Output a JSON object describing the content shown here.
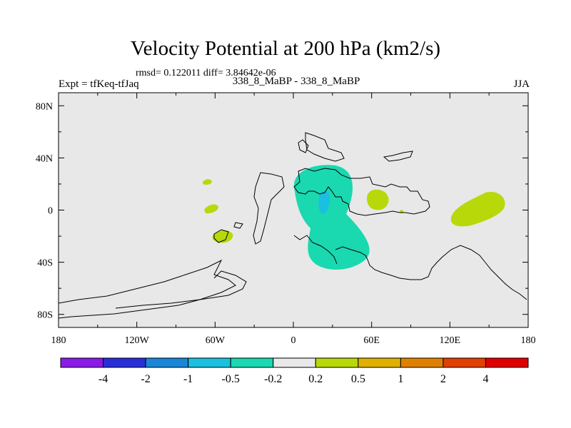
{
  "chart_data": {
    "type": "heatmap",
    "title": "Velocity Potential at 200 hPa (km2/s)",
    "stats_text": "rmsd= 0.122011 diff= 3.84642e-06",
    "left_label": "Expt = tfKeq-tfJaq",
    "center_label": "338_8_MaBP - 338_8_MaBP",
    "right_label": "JJA",
    "x_ticks": [
      {
        "value": -180,
        "label": "180"
      },
      {
        "value": -120,
        "label": "120W"
      },
      {
        "value": -60,
        "label": "60W"
      },
      {
        "value": 0,
        "label": "0"
      },
      {
        "value": 60,
        "label": "60E"
      },
      {
        "value": 120,
        "label": "120E"
      },
      {
        "value": 180,
        "label": "180"
      }
    ],
    "y_ticks": [
      {
        "value": 80,
        "label": "80N"
      },
      {
        "value": 40,
        "label": "40N"
      },
      {
        "value": 0,
        "label": "0"
      },
      {
        "value": -40,
        "label": "40S"
      },
      {
        "value": -80,
        "label": "80S"
      }
    ],
    "xlim": [
      -180,
      180
    ],
    "ylim": [
      -90,
      90
    ],
    "background_color": "#e8e8e8",
    "colorbar": {
      "colors": [
        "#8b1ae6",
        "#2a2ed8",
        "#1a86d8",
        "#1ac0e0",
        "#1ad8b0",
        "#e8e8e8",
        "#b8d80a",
        "#e0b000",
        "#e08000",
        "#e04000",
        "#e00000"
      ],
      "labels": [
        "-4",
        "-2",
        "-1",
        "-0.5",
        "-0.2",
        "0.2",
        "0.5",
        "1",
        "2",
        "4"
      ]
    },
    "regions": [
      {
        "level": "-0.5 to -0.2",
        "color": "#1ad8b0",
        "area": "Africa / Indian Ocean, about 5E-60E, 35S-35N"
      },
      {
        "level": "-1 to -0.5",
        "color": "#1ac0e0",
        "area": "around 25E-30E, 0"
      },
      {
        "level": "0.2 to 0.5",
        "color": "#b8d80a",
        "area": "western Pacific, about 120E-155E, 15S-15N"
      },
      {
        "level": "0.2 to 0.5",
        "color": "#b8d80a",
        "area": "about 55E-70E, 0-15N"
      },
      {
        "level": "0.2 to 0.5",
        "color": "#b8d80a",
        "area": "small patches over South America"
      }
    ]
  }
}
